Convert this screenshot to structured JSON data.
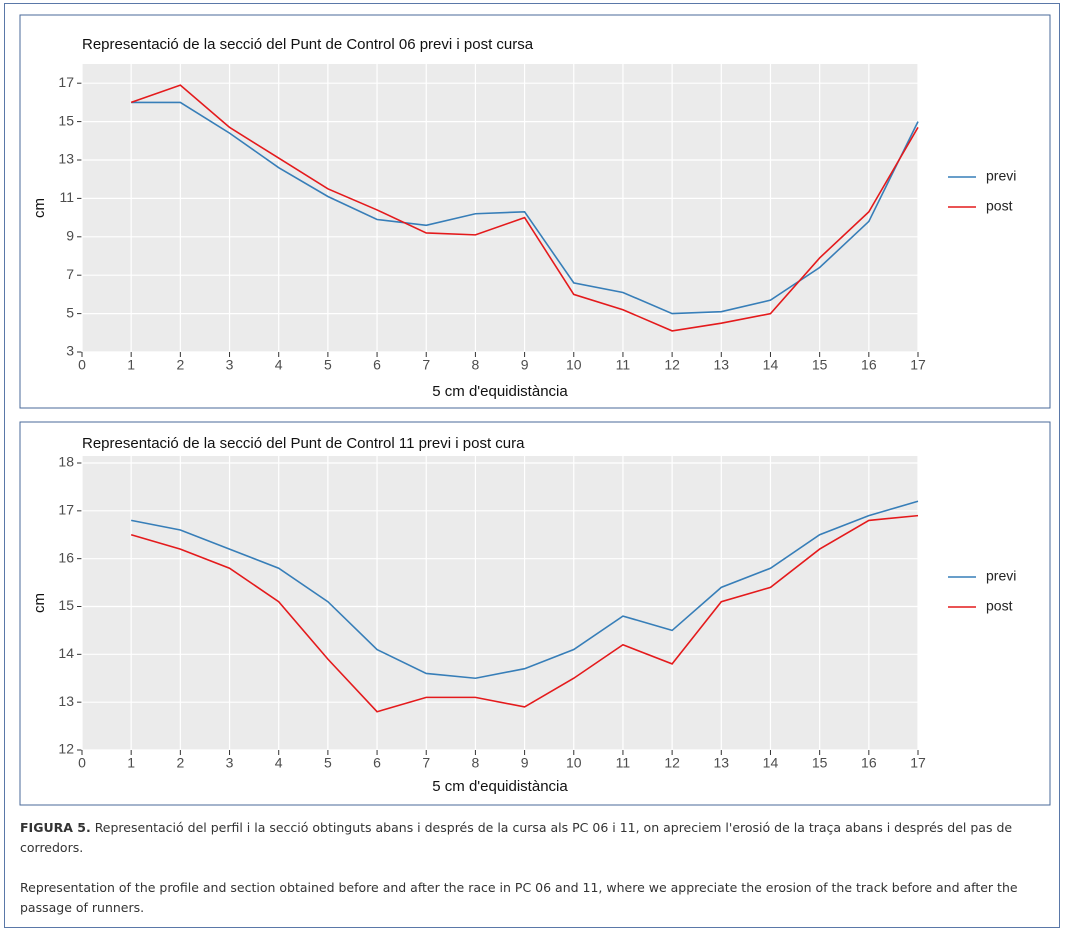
{
  "chart_data": [
    {
      "type": "line",
      "title": "Representació de la secció del Punt de Control 06 previ i post cursa",
      "x_label": "5 cm d'equidistància",
      "y_label": "cm",
      "x": [
        1,
        2,
        3,
        4,
        5,
        6,
        7,
        8,
        9,
        10,
        11,
        12,
        13,
        14,
        15,
        16,
        17
      ],
      "series": [
        {
          "name": "previ",
          "color": "#377eb8",
          "values": [
            16,
            16,
            14.4,
            12.6,
            11.1,
            9.9,
            9.6,
            10.2,
            10.3,
            6.6,
            6.1,
            5.0,
            5.1,
            5.7,
            7.4,
            9.8,
            15.0
          ]
        },
        {
          "name": "post",
          "color": "#e41a1c",
          "values": [
            16.0,
            16.9,
            14.7,
            13.1,
            11.5,
            10.4,
            9.2,
            9.1,
            10.0,
            6.0,
            5.2,
            4.1,
            4.5,
            5.0,
            7.9,
            10.3,
            14.7
          ]
        }
      ],
      "xlim": [
        0,
        17
      ],
      "xticks": [
        0,
        1,
        2,
        3,
        4,
        5,
        6,
        7,
        8,
        9,
        10,
        11,
        12,
        13,
        14,
        15,
        16,
        17
      ],
      "ylim": [
        3,
        18
      ],
      "yticks": [
        3,
        5,
        7,
        9,
        11,
        13,
        15,
        17
      ],
      "grid": true,
      "legend": "right"
    },
    {
      "type": "line",
      "title": "Representació de la secció del Punt de Control 11 previ i post cura",
      "x_label": "5 cm d'equidistància",
      "y_label": "cm",
      "x": [
        1,
        2,
        3,
        4,
        5,
        6,
        7,
        8,
        9,
        10,
        11,
        12,
        13,
        14,
        15,
        16,
        17
      ],
      "series": [
        {
          "name": "previ",
          "color": "#377eb8",
          "values": [
            16.8,
            16.6,
            16.2,
            15.8,
            15.1,
            14.1,
            13.6,
            13.5,
            13.7,
            14.1,
            14.8,
            14.5,
            15.4,
            15.8,
            16.5,
            16.9,
            17.2
          ]
        },
        {
          "name": "post",
          "color": "#e41a1c",
          "values": [
            16.5,
            16.2,
            15.8,
            15.1,
            13.9,
            12.8,
            13.1,
            13.1,
            12.9,
            13.5,
            14.2,
            13.8,
            15.1,
            15.4,
            16.2,
            16.8,
            16.9
          ]
        }
      ],
      "xlim": [
        0,
        17
      ],
      "xticks": [
        0,
        1,
        2,
        3,
        4,
        5,
        6,
        7,
        8,
        9,
        10,
        11,
        12,
        13,
        14,
        15,
        16,
        17
      ],
      "ylim": [
        12,
        18
      ],
      "yticks": [
        12,
        13,
        14,
        15,
        16,
        17,
        18
      ],
      "grid": true,
      "legend": "right"
    }
  ],
  "caption": {
    "label": "FIGURA 5.",
    "text": "Representació del perfil i la secció obtinguts abans i després de la cursa als PC 06 i 11, on apreciem l'erosió de la traça abans i després del pas de corredors.",
    "translation": "Representation of the profile and section obtained before and after the race in PC 06 and 11, where we appreciate the erosion of the track before and after the passage of runners."
  }
}
